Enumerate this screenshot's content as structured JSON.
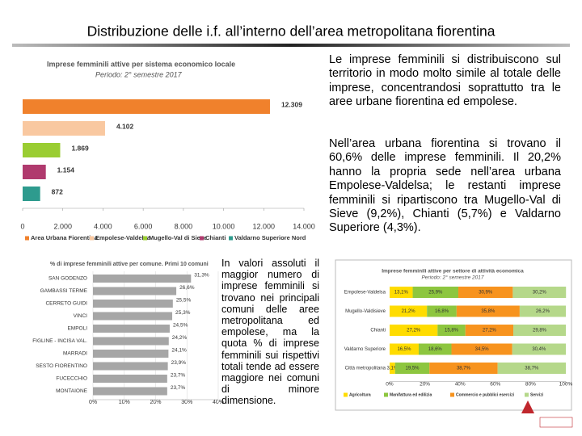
{
  "title": "Distribuzione delle i.f. all’interno dell’area metropolitana fiorentina",
  "paragraphs": [
    "Le imprese femminili si distribuiscono sul territorio in modo molto simile al totale delle imprese, concentrandosi soprattutto tra le aree urbane fiorentina ed empolese.",
    "Nell’area urbana fiorentina si trovano il 60,6% delle imprese femminili. Il 20,2% hanno la propria sede nell’area urbana Empolese-Valdelsa; le restanti imprese femminili si ripartiscono tra Mugello-Val di Sieve (9,2%), Chianti (5,7%) e Valdarno Superiore (4,3%).",
    "In valori assoluti il maggior numero di imprese femminili si trovano nei principali comuni delle aree metropolitana ed empolese, ma la quota % di imprese femminili sui rispettivi totali tende ad essere maggiore nei comuni di minore dimensione."
  ],
  "chart_data": [
    {
      "type": "bar",
      "orientation": "horizontal",
      "title": "Imprese femminili attive per sistema economico locale",
      "subtitle": "Periodo: 2° semestre 2017",
      "categories": [
        "Area Urbana Fiorentina",
        "Empolese-Valdelsa",
        "Mugello-Val di Sieve",
        "Chianti",
        "Valdarno Superiore Nord"
      ],
      "values": [
        12309,
        4102,
        1869,
        1154,
        872
      ],
      "value_labels": [
        "12.309",
        "4.102",
        "1.869",
        "1.154",
        "872"
      ],
      "colors": [
        "#f0812c",
        "#f9c8a0",
        "#9acd32",
        "#b03a6e",
        "#2e9b8e"
      ],
      "xlim": [
        0,
        14000
      ],
      "xticks": [
        0,
        {
          "value": 2000,
          "label": "2.000"
        },
        {
          "value": 4000,
          "label": "4.000"
        },
        {
          "value": 6000,
          "label": "6.000"
        },
        {
          "value": 8000,
          "label": "8.000"
        },
        {
          "value": 10000,
          "label": "10.000"
        },
        {
          "value": 12000,
          "label": "12.000"
        },
        {
          "value": 14000,
          "label": "14.000"
        }
      ],
      "grid": false,
      "legend": "bottom"
    },
    {
      "type": "bar",
      "orientation": "horizontal",
      "title": "% di imprese femminili attive per comune. Primi 10 comuni",
      "categories": [
        "SAN GODENZO",
        "GAMBASSI TERME",
        "CERRETO GUIDI",
        "VINCI",
        "EMPOLI",
        "FIGLINE - INCISA VAL.",
        "MARRADI",
        "SESTO FIORENTINO",
        "FUCECCHIO",
        "MONTAIONE"
      ],
      "values": [
        31.3,
        26.6,
        25.5,
        25.3,
        24.5,
        24.2,
        24.1,
        23.9,
        23.7,
        23.7
      ],
      "value_labels": [
        "31,3%",
        "26,6%",
        "25,5%",
        "25,3%",
        "24,5%",
        "24,2%",
        "24,1%",
        "23,9%",
        "23,7%",
        "23,7%"
      ],
      "color": "#a6a6a6",
      "xlim": [
        0,
        40
      ],
      "xticks": [
        {
          "value": 0,
          "label": "0%"
        },
        {
          "value": 10,
          "label": "10%"
        },
        {
          "value": 20,
          "label": "20%"
        },
        {
          "value": 30,
          "label": "30%"
        },
        {
          "value": 40,
          "label": "40%"
        }
      ],
      "grid": true
    },
    {
      "type": "stacked_bar",
      "orientation": "horizontal",
      "title": "Imprese femminili attive per settore di attività economica",
      "subtitle": "Periodo: 2° semestre 2017",
      "categories": [
        "Empolese-Valdelsa",
        "Mugello-Valdisieve",
        "Chianti",
        "Valdarno Superiore",
        "Città metropolitana"
      ],
      "series": [
        {
          "name": "Agricoltura",
          "color": "#ffdc00",
          "values": [
            13.1,
            21.2,
            27.2,
            16.5,
            3.1
          ],
          "value_labels": [
            "13,1%",
            "21,2%",
            "27,2%",
            "16,5%",
            "3,1%"
          ]
        },
        {
          "name": "Manifattura ed edilizia",
          "color": "#8dc63f",
          "values": [
            25.9,
            16.8,
            15.8,
            18.6,
            19.5
          ],
          "value_labels": [
            "25,9%",
            "16,8%",
            "15,8%",
            "18,6%",
            "19,5%"
          ]
        },
        {
          "name": "Commercio e pubblici esercizi",
          "color": "#f7931e",
          "values": [
            30.9,
            35.8,
            27.2,
            34.5,
            38.7
          ],
          "value_labels": [
            "30,9%",
            "35,8%",
            "27,2%",
            "34,5%",
            "38,7%"
          ]
        },
        {
          "name": "Servizi",
          "color": "#b5d88a",
          "values": [
            30.2,
            26.2,
            29.8,
            30.4,
            38.7
          ],
          "value_labels": [
            "30,2%",
            "26,2%",
            "29,8%",
            "30,4%",
            "38,7%"
          ]
        }
      ],
      "xlim": [
        0,
        100
      ],
      "xticks": [
        {
          "value": 0,
          "label": "0%"
        },
        {
          "value": 20,
          "label": "20%"
        },
        {
          "value": 40,
          "label": "40%"
        },
        {
          "value": 60,
          "label": "60%"
        },
        {
          "value": 80,
          "label": "80%"
        },
        {
          "value": 100,
          "label": "100%"
        }
      ],
      "grid": false,
      "legend": "bottom"
    }
  ]
}
